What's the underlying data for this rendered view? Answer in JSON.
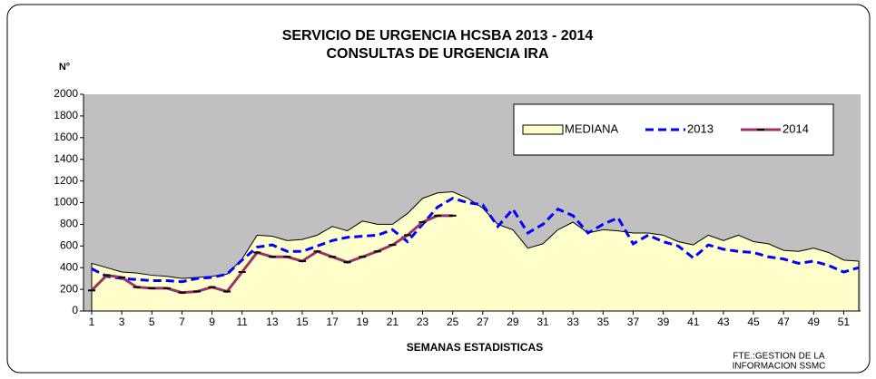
{
  "chart_data": {
    "type": "line",
    "title": "SERVICIO DE URGENCIA HCSBA 2013 - 2014",
    "subtitle": "CONSULTAS DE URGENCIA IRA",
    "y_label": "N°",
    "x_label": "SEMANAS ESTADISTICAS",
    "source": [
      "FTE.:GESTION DE LA",
      "INFORMACION  SSMC"
    ],
    "x": [
      1,
      2,
      3,
      4,
      5,
      6,
      7,
      8,
      9,
      10,
      11,
      12,
      13,
      14,
      15,
      16,
      17,
      18,
      19,
      20,
      21,
      22,
      23,
      24,
      25,
      26,
      27,
      28,
      29,
      30,
      31,
      32,
      33,
      34,
      35,
      36,
      37,
      38,
      39,
      40,
      41,
      42,
      43,
      44,
      45,
      46,
      47,
      48,
      49,
      50,
      51,
      52
    ],
    "xlim": [
      1,
      52
    ],
    "xticks": [
      1,
      3,
      5,
      7,
      9,
      11,
      13,
      15,
      17,
      19,
      21,
      23,
      25,
      27,
      29,
      31,
      33,
      35,
      37,
      39,
      41,
      43,
      45,
      47,
      49,
      51
    ],
    "ylim": [
      0,
      2000
    ],
    "yticks": [
      0,
      200,
      400,
      600,
      800,
      1000,
      1200,
      1400,
      1600,
      1800,
      2000
    ],
    "plot_background": "#c0c0c0",
    "grid": false,
    "legend": "upper right",
    "series": [
      {
        "name": "MEDIANA",
        "style": "area",
        "color": "#ffffcc",
        "values": [
          440,
          400,
          360,
          350,
          330,
          320,
          300,
          310,
          320,
          340,
          480,
          700,
          690,
          650,
          660,
          700,
          780,
          740,
          830,
          800,
          800,
          900,
          1040,
          1090,
          1100,
          1040,
          950,
          800,
          750,
          580,
          620,
          750,
          820,
          720,
          750,
          740,
          720,
          720,
          700,
          640,
          610,
          700,
          650,
          700,
          640,
          620,
          560,
          550,
          580,
          540,
          470,
          460
        ]
      },
      {
        "name": "2013",
        "style": "dashed",
        "color": "#0000ff",
        "values": [
          390,
          320,
          300,
          290,
          280,
          280,
          270,
          300,
          310,
          340,
          470,
          590,
          610,
          550,
          550,
          600,
          650,
          680,
          690,
          700,
          750,
          640,
          800,
          960,
          1040,
          1000,
          980,
          780,
          940,
          720,
          800,
          940,
          880,
          720,
          800,
          860,
          620,
          700,
          640,
          600,
          490,
          610,
          570,
          550,
          540,
          500,
          480,
          440,
          460,
          420,
          360,
          400
        ]
      },
      {
        "name": "2014",
        "style": "solid",
        "color": "#993366",
        "values": [
          190,
          330,
          310,
          220,
          210,
          210,
          170,
          180,
          220,
          180,
          360,
          540,
          500,
          500,
          460,
          550,
          500,
          450,
          500,
          550,
          610,
          700,
          820,
          880,
          880,
          null,
          null,
          null,
          null,
          null,
          null,
          null,
          null,
          null,
          null,
          null,
          null,
          null,
          null,
          null,
          null,
          null,
          null,
          null,
          null,
          null,
          null,
          null,
          null,
          null,
          null,
          null
        ]
      }
    ]
  }
}
